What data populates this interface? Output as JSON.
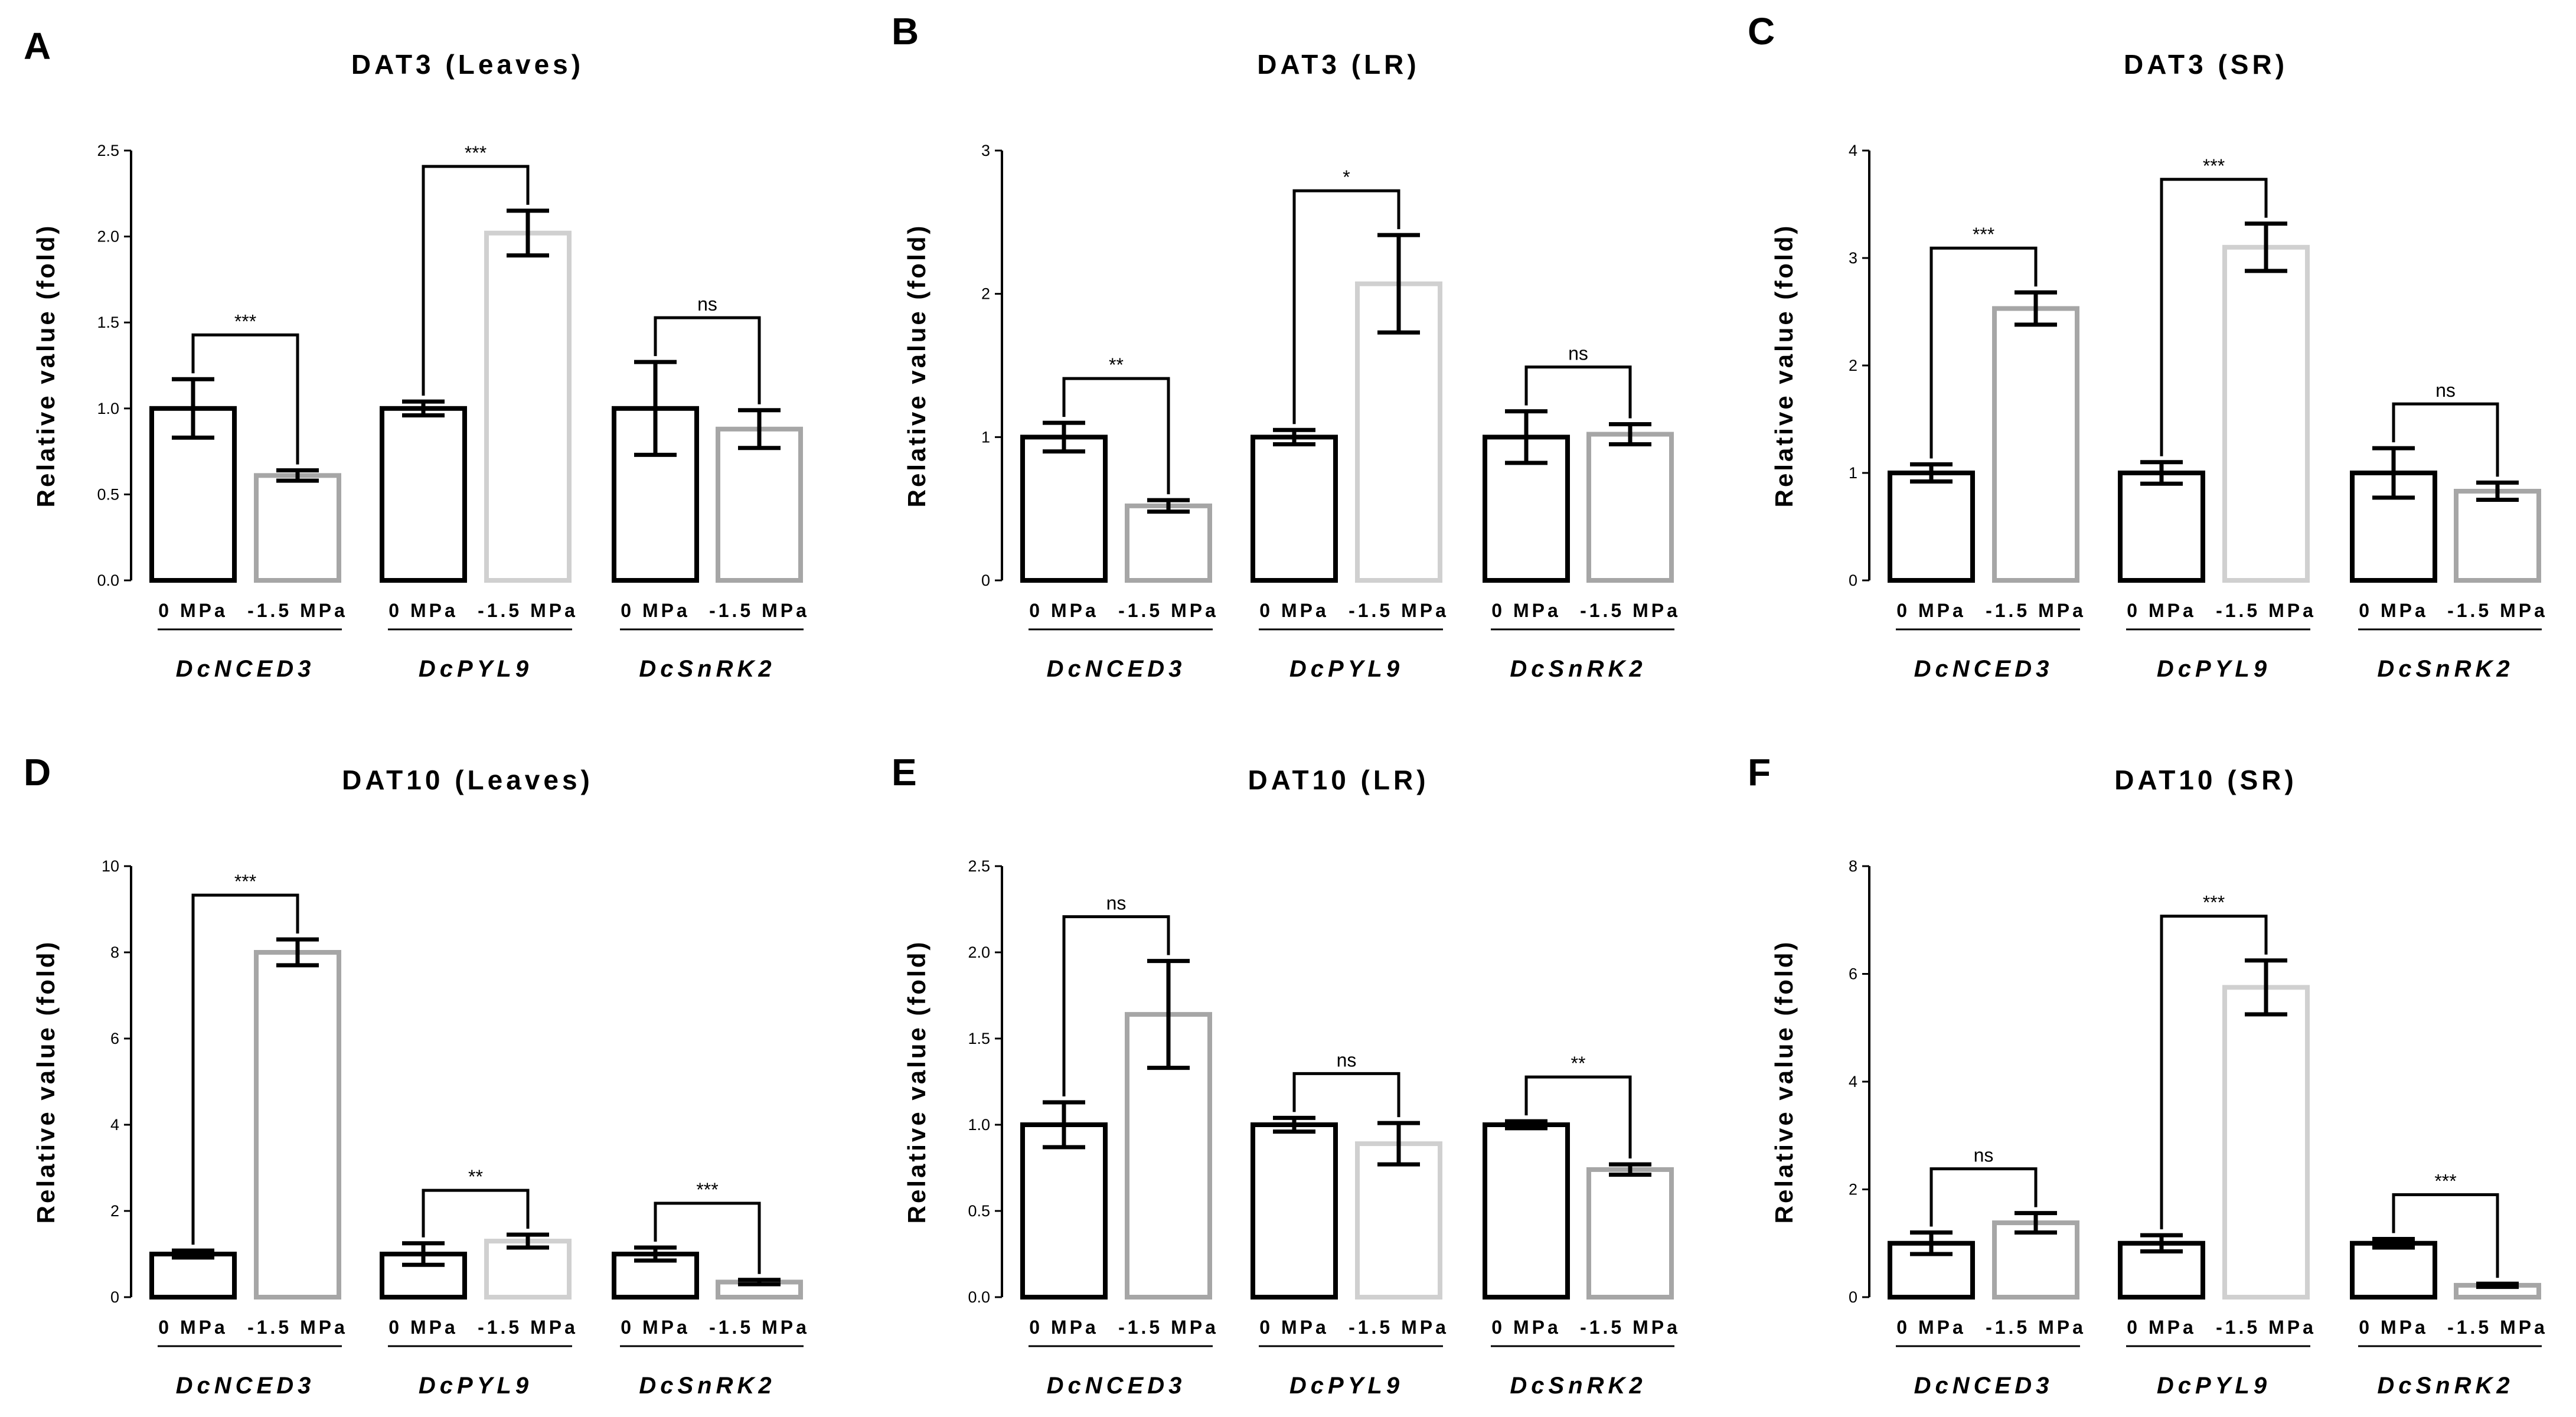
{
  "figure": {
    "panel_letters": [
      "A",
      "B",
      "C",
      "D",
      "E",
      "F"
    ]
  },
  "colors": {
    "black": "#000000",
    "grey_dark": "#a6a6a6",
    "grey_light": "#d0d0d0"
  },
  "chart_data": [
    {
      "type": "bar",
      "panel": "A",
      "title": "DAT3 (Leaves)",
      "ylabel": "Relative value (fold)",
      "ylim": [
        0,
        2.5
      ],
      "yticks": [
        "0.0",
        "0.5",
        "1.0",
        "1.5",
        "2.0",
        "2.5"
      ],
      "conditions": [
        "0 MPa",
        "-1.5 MPa"
      ],
      "genes": [
        "DcNCED3",
        "DcPYL9",
        "DcSnRK2"
      ],
      "series": [
        {
          "name": "0 MPa",
          "color": "#000000",
          "values": [
            1.0,
            1.0,
            1.0
          ],
          "errors": [
            0.17,
            0.04,
            0.27
          ]
        },
        {
          "name": "-1.5 MPa",
          "colors": [
            "#a6a6a6",
            "#d0d0d0",
            "#a6a6a6"
          ],
          "values": [
            0.61,
            2.02,
            0.88
          ],
          "errors": [
            0.03,
            0.13,
            0.11
          ]
        }
      ],
      "significance": [
        "***",
        "***",
        "ns"
      ]
    },
    {
      "type": "bar",
      "panel": "B",
      "title": "DAT3 (LR)",
      "ylabel": "Relative value (fold)",
      "ylim": [
        0,
        3
      ],
      "yticks": [
        "0",
        "1",
        "2",
        "3"
      ],
      "conditions": [
        "0 MPa",
        "-1.5 MPa"
      ],
      "genes": [
        "DcNCED3",
        "DcPYL9",
        "DcSnRK2"
      ],
      "series": [
        {
          "name": "0 MPa",
          "color": "#000000",
          "values": [
            1.0,
            1.0,
            1.0
          ],
          "errors": [
            0.1,
            0.05,
            0.18
          ]
        },
        {
          "name": "-1.5 MPa",
          "colors": [
            "#a6a6a6",
            "#d0d0d0",
            "#a6a6a6"
          ],
          "values": [
            0.52,
            2.07,
            1.02
          ],
          "errors": [
            0.04,
            0.34,
            0.07
          ]
        }
      ],
      "significance": [
        "**",
        "*",
        "ns"
      ]
    },
    {
      "type": "bar",
      "panel": "C",
      "title": "DAT3 (SR)",
      "ylabel": "Relative value (fold)",
      "ylim": [
        0,
        4
      ],
      "yticks": [
        "0",
        "1",
        "2",
        "3",
        "4"
      ],
      "conditions": [
        "0 MPa",
        "-1.5 MPa"
      ],
      "genes": [
        "DcNCED3",
        "DcPYL9",
        "DcSnRK2"
      ],
      "series": [
        {
          "name": "0 MPa",
          "color": "#000000",
          "values": [
            1.0,
            1.0,
            1.0
          ],
          "errors": [
            0.08,
            0.1,
            0.23
          ]
        },
        {
          "name": "-1.5 MPa",
          "colors": [
            "#a6a6a6",
            "#d0d0d0",
            "#a6a6a6"
          ],
          "values": [
            2.53,
            3.1,
            0.83
          ],
          "errors": [
            0.15,
            0.22,
            0.08
          ]
        }
      ],
      "significance": [
        "***",
        "***",
        "ns"
      ]
    },
    {
      "type": "bar",
      "panel": "D",
      "title": "DAT10 (Leaves)",
      "ylabel": "Relative value (fold)",
      "ylim": [
        0,
        10
      ],
      "yticks": [
        "0",
        "2",
        "4",
        "6",
        "8",
        "10"
      ],
      "conditions": [
        "0 MPa",
        "-1.5 MPa"
      ],
      "genes": [
        "DcNCED3",
        "DcPYL9",
        "DcSnRK2"
      ],
      "series": [
        {
          "name": "0 MPa",
          "color": "#000000",
          "values": [
            1.0,
            1.0,
            1.0
          ],
          "errors": [
            0.08,
            0.25,
            0.15
          ]
        },
        {
          "name": "-1.5 MPa",
          "colors": [
            "#a6a6a6",
            "#d0d0d0",
            "#a6a6a6"
          ],
          "values": [
            8.0,
            1.3,
            0.35
          ],
          "errors": [
            0.3,
            0.15,
            0.05
          ]
        }
      ],
      "significance": [
        "***",
        "**",
        "***"
      ]
    },
    {
      "type": "bar",
      "panel": "E",
      "title": "DAT10 (LR)",
      "ylabel": "Relative value (fold)",
      "ylim": [
        0,
        2.5
      ],
      "yticks": [
        "0.0",
        "0.5",
        "1.0",
        "1.5",
        "2.0",
        "2.5"
      ],
      "conditions": [
        "0 MPa",
        "-1.5 MPa"
      ],
      "genes": [
        "DcNCED3",
        "DcPYL9",
        "DcSnRK2"
      ],
      "series": [
        {
          "name": "0 MPa",
          "color": "#000000",
          "values": [
            1.0,
            1.0,
            1.0
          ],
          "errors": [
            0.13,
            0.04,
            0.02
          ]
        },
        {
          "name": "-1.5 MPa",
          "colors": [
            "#a6a6a6",
            "#d0d0d0",
            "#a6a6a6"
          ],
          "values": [
            1.64,
            0.89,
            0.74
          ],
          "errors": [
            0.31,
            0.12,
            0.03
          ]
        }
      ],
      "significance": [
        "ns",
        "ns",
        "**"
      ]
    },
    {
      "type": "bar",
      "panel": "F",
      "title": "DAT10 (SR)",
      "ylabel": "Relative value (fold)",
      "ylim": [
        0,
        8
      ],
      "yticks": [
        "0",
        "2",
        "4",
        "6",
        "8"
      ],
      "conditions": [
        "0 MPa",
        "-1.5 MPa"
      ],
      "genes": [
        "DcNCED3",
        "DcPYL9",
        "DcSnRK2"
      ],
      "series": [
        {
          "name": "0 MPa",
          "color": "#000000",
          "values": [
            1.0,
            1.0,
            1.0
          ],
          "errors": [
            0.2,
            0.15,
            0.08
          ]
        },
        {
          "name": "-1.5 MPa",
          "colors": [
            "#a6a6a6",
            "#d0d0d0",
            "#a6a6a6"
          ],
          "values": [
            1.38,
            5.75,
            0.22
          ],
          "errors": [
            0.18,
            0.5,
            0.03
          ]
        }
      ],
      "significance": [
        "ns",
        "***",
        "***"
      ]
    }
  ]
}
